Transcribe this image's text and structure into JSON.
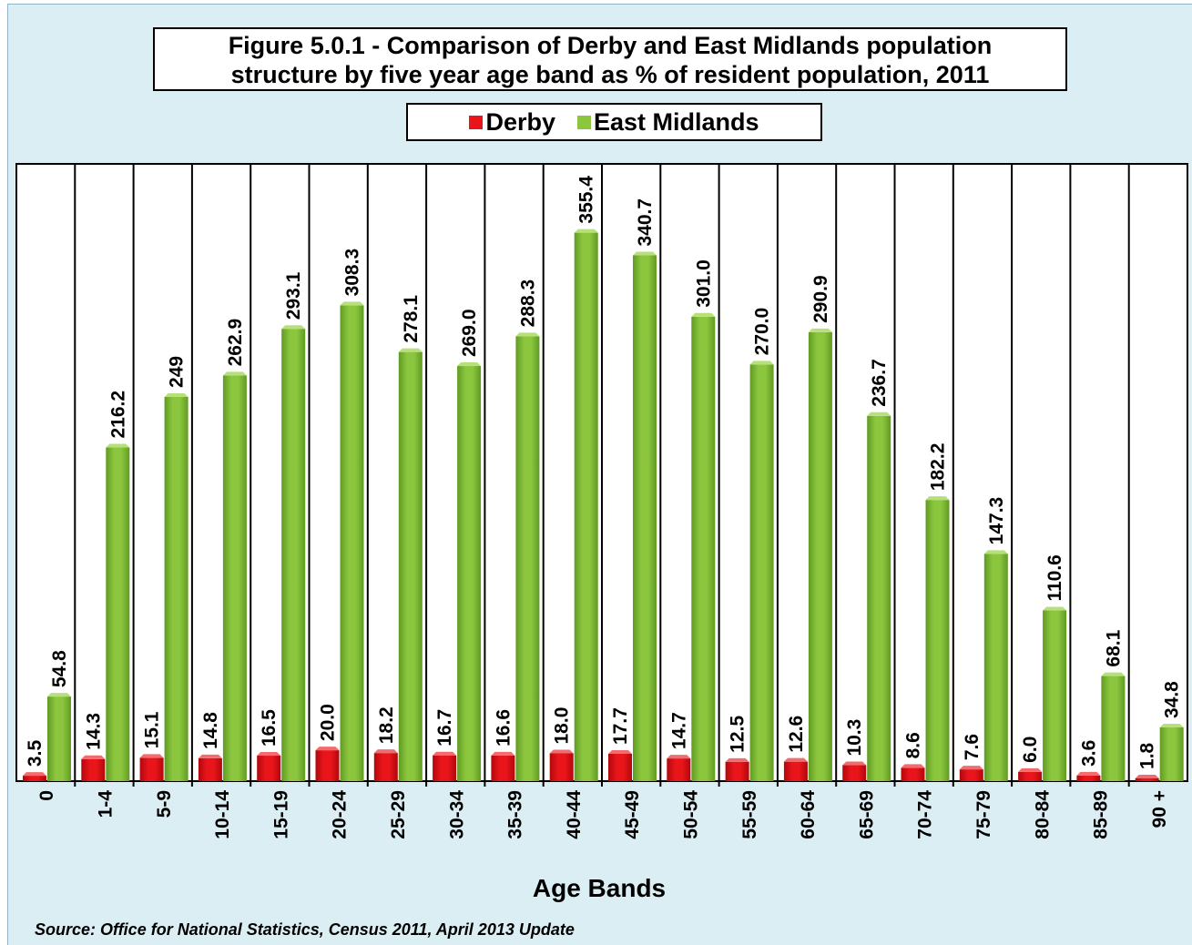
{
  "chart_data": {
    "type": "bar",
    "title_lines": [
      "Figure 5.0.1 - Comparison of Derby and East Midlands population",
      "structure by five year age band as % of resident population, 2011"
    ],
    "xlabel": "Age Bands",
    "ylabel": "",
    "ylim": [
      0,
      400
    ],
    "grid": false,
    "legend_position": "top-center",
    "categories": [
      "0",
      "1-4",
      "5-9",
      "10-14",
      "15-19",
      "20-24",
      "25-29",
      "30-34",
      "35-39",
      "40-44",
      "45-49",
      "50-54",
      "55-59",
      "60-64",
      "65-69",
      "70-74",
      "75-79",
      "80-84",
      "85-89",
      "90 +"
    ],
    "series": [
      {
        "name": "Derby",
        "color": "#e8151b",
        "values": [
          3.5,
          14.3,
          15.1,
          14.8,
          16.5,
          20.0,
          18.2,
          16.7,
          16.6,
          18.0,
          17.7,
          14.7,
          12.5,
          12.6,
          10.3,
          8.6,
          7.6,
          6.0,
          3.6,
          1.8
        ],
        "labels": [
          "3.5",
          "14.3",
          "15.1",
          "14.8",
          "16.5",
          "20.0",
          "18.2",
          "16.7",
          "16.6",
          "18.0",
          "17.7",
          "14.7",
          "12.5",
          "12.6",
          "10.3",
          "8.6",
          "7.6",
          "6.0",
          "3.6",
          "1.8"
        ]
      },
      {
        "name": "East Midlands",
        "color": "#8cc63f",
        "values": [
          54.8,
          216.2,
          249,
          262.9,
          293.1,
          308.3,
          278.1,
          269.0,
          288.3,
          355.4,
          340.7,
          301.0,
          270.0,
          290.9,
          236.7,
          182.2,
          147.3,
          110.6,
          68.1,
          34.8
        ],
        "labels": [
          "54.8",
          "216.2",
          "249",
          "262.9",
          "293.1",
          "308.3",
          "278.1",
          "269.0",
          "288.3",
          "355.4",
          "340.7",
          "301.0",
          "270.0",
          "290.9",
          "236.7",
          "182.2",
          "147.3",
          "110.6",
          "68.1",
          "34.8"
        ]
      }
    ]
  },
  "source_note": "Source: Office for National Statistics, Census 2011, April 2013 Update"
}
